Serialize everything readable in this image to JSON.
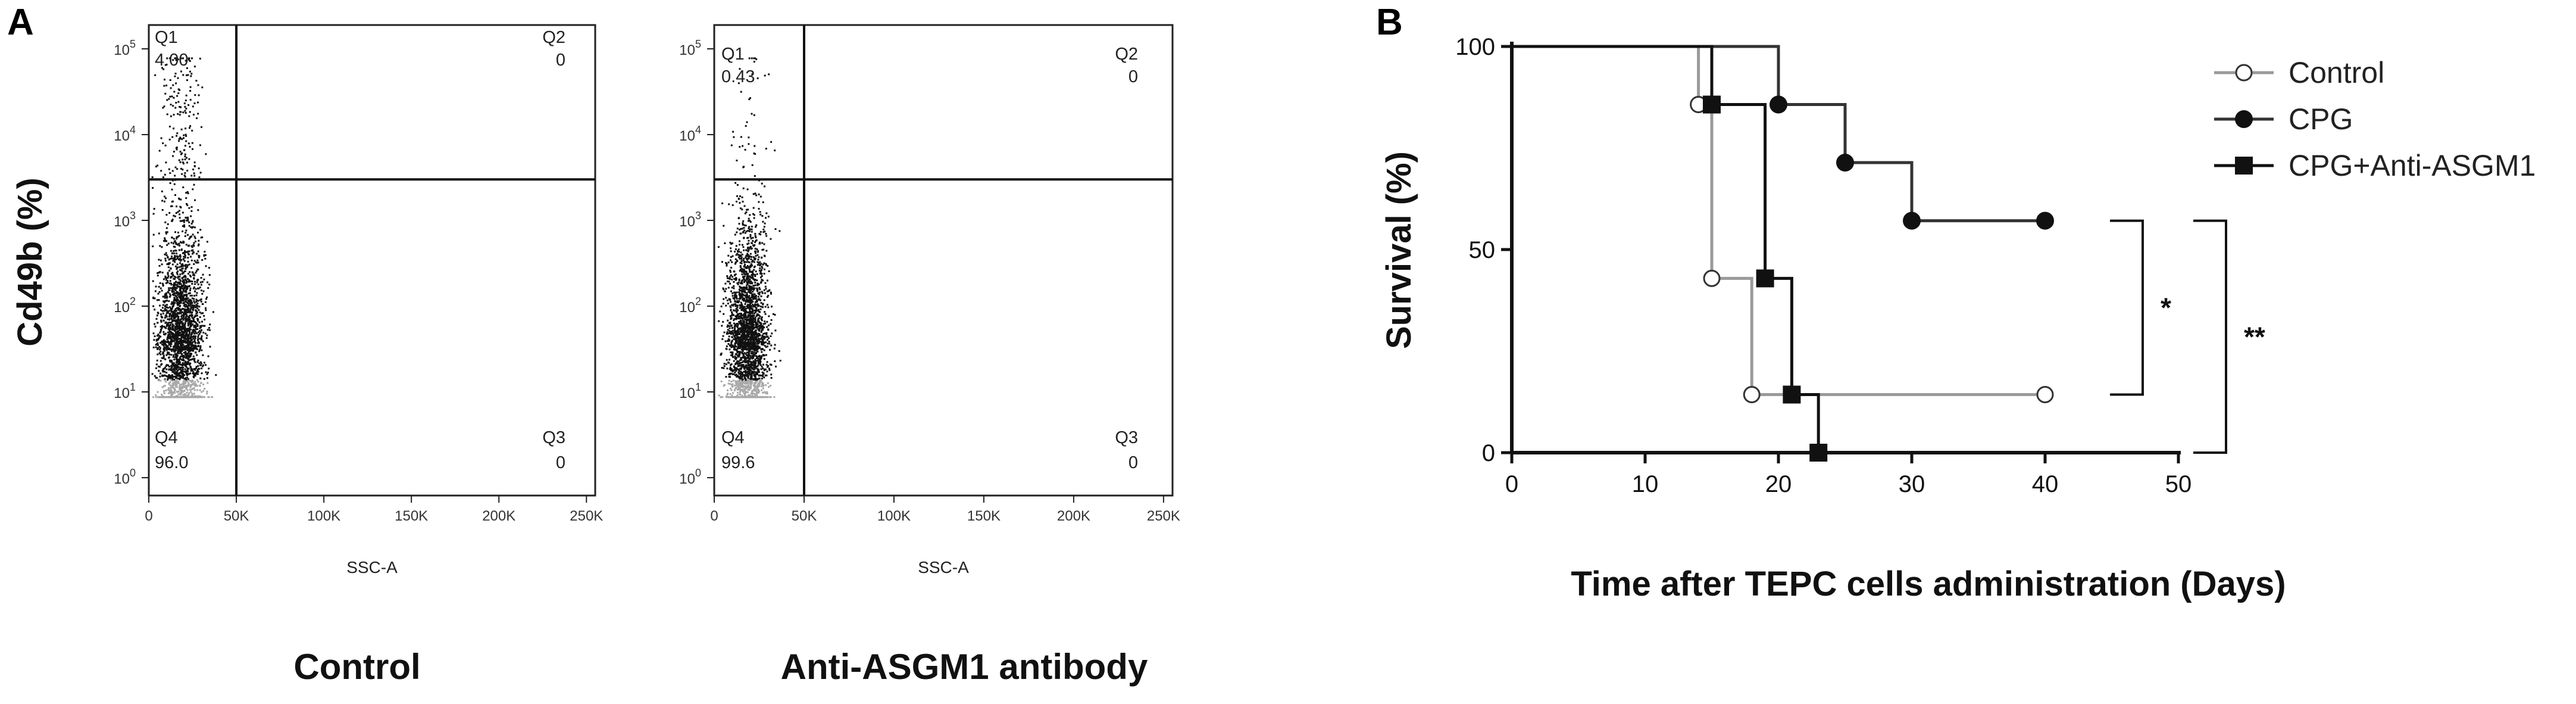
{
  "panels": {
    "a": {
      "letter": "A"
    },
    "b": {
      "letter": "B"
    }
  },
  "chart_data": [
    {
      "type": "scatter",
      "panel": "A",
      "caption": "Control",
      "xlabel": "SSC-A",
      "ylabel": "Cd49b (%)",
      "x_ticks": [
        "0",
        "50K",
        "100K",
        "150K",
        "200K",
        "250K"
      ],
      "y_ticks": [
        "10^0",
        "10^1",
        "10^2",
        "10^3",
        "10^4",
        "10^5"
      ],
      "quadrants": [
        {
          "name": "Q1",
          "value": "4.00"
        },
        {
          "name": "Q2",
          "value": "0"
        },
        {
          "name": "Q3",
          "value": "0"
        },
        {
          "name": "Q4",
          "value": "96.0"
        }
      ],
      "gate": {
        "x": 50000,
        "y": 3000
      }
    },
    {
      "type": "scatter",
      "panel": "A",
      "caption": "Anti-ASGM1 antibody",
      "xlabel": "SSC-A",
      "ylabel": "",
      "x_ticks": [
        "0",
        "50K",
        "100K",
        "150K",
        "200K",
        "250K"
      ],
      "y_ticks": [
        "10^0",
        "10^1",
        "10^2",
        "10^3",
        "10^4",
        "10^5"
      ],
      "quadrants": [
        {
          "name": "Q1",
          "value": "0.43"
        },
        {
          "name": "Q2",
          "value": "0"
        },
        {
          "name": "Q3",
          "value": "0"
        },
        {
          "name": "Q4",
          "value": "99.6"
        }
      ],
      "gate": {
        "x": 50000,
        "y": 3000
      }
    },
    {
      "type": "line",
      "subtype": "kaplan-meier",
      "panel": "B",
      "xlabel": "Time after TEPC cells administration (Days)",
      "ylabel": "Survival (%)",
      "xlim": [
        0,
        50
      ],
      "ylim": [
        0,
        100
      ],
      "x_ticks": [
        0,
        10,
        20,
        30,
        40,
        50
      ],
      "y_ticks": [
        0,
        50,
        100
      ],
      "legend_position": "top-right",
      "series": [
        {
          "name": "Control",
          "marker": "circle-open",
          "steps": [
            [
              0,
              100
            ],
            [
              14,
              100
            ],
            [
              14,
              85.7
            ],
            [
              15,
              85.7
            ],
            [
              15,
              42.9
            ],
            [
              18,
              42.9
            ],
            [
              18,
              14.3
            ],
            [
              40,
              14.3
            ]
          ],
          "markers": [
            [
              14,
              85.7
            ],
            [
              15,
              42.9
            ],
            [
              18,
              14.3
            ],
            [
              40,
              14.3
            ]
          ]
        },
        {
          "name": "CPG",
          "marker": "circle-filled",
          "steps": [
            [
              0,
              100
            ],
            [
              20,
              100
            ],
            [
              20,
              85.7
            ],
            [
              25,
              85.7
            ],
            [
              25,
              71.4
            ],
            [
              30,
              71.4
            ],
            [
              30,
              57.1
            ],
            [
              40,
              57.1
            ]
          ],
          "markers": [
            [
              20,
              85.7
            ],
            [
              25,
              71.4
            ],
            [
              30,
              57.1
            ],
            [
              40,
              57.1
            ]
          ]
        },
        {
          "name": "CPG+Anti-ASGM1",
          "marker": "square-filled",
          "steps": [
            [
              0,
              100
            ],
            [
              15,
              100
            ],
            [
              15,
              85.7
            ],
            [
              19,
              85.7
            ],
            [
              19,
              42.9
            ],
            [
              21,
              42.9
            ],
            [
              21,
              14.3
            ],
            [
              23,
              14.3
            ],
            [
              23,
              0
            ]
          ],
          "markers": [
            [
              15,
              85.7
            ],
            [
              19,
              42.9
            ],
            [
              21,
              14.3
            ],
            [
              23,
              0
            ]
          ]
        }
      ],
      "significance": [
        {
          "label": "*",
          "span": [
            57.1,
            14.3
          ]
        },
        {
          "label": "**",
          "span": [
            57.1,
            0
          ]
        }
      ]
    }
  ]
}
